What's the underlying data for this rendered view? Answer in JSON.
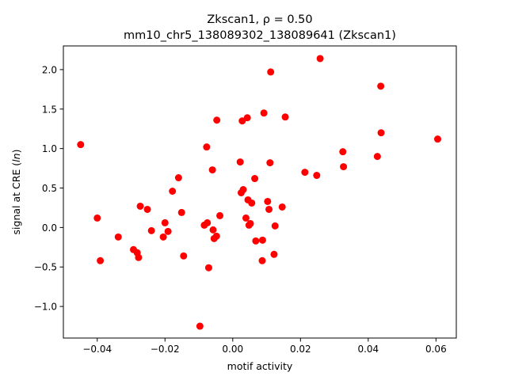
{
  "chart_data": {
    "type": "scatter",
    "title_line1": "Zkscan1, ρ = 0.50",
    "title_line2": "mm10_chr5_138089302_138089641 (Zkscan1)",
    "xlabel": "motif activity",
    "ylabel": "signal at CRE (ln)",
    "xlim": [
      -0.05,
      0.066
    ],
    "ylim": [
      -1.4,
      2.3
    ],
    "xticks": [
      -0.04,
      -0.02,
      0.0,
      0.02,
      0.04,
      0.06
    ],
    "xtick_labels": [
      "−0.04",
      "−0.02",
      "0.00",
      "0.02",
      "0.04",
      "0.06"
    ],
    "yticks": [
      -1.0,
      -0.5,
      0.0,
      0.5,
      1.0,
      1.5,
      2.0
    ],
    "ytick_labels": [
      "−1.0",
      "−0.5",
      "0.0",
      "0.5",
      "1.0",
      "1.5",
      "2.0"
    ],
    "grid": false,
    "marker_color": "#ff0000",
    "points": [
      {
        "x": -0.0449,
        "y": 1.05
      },
      {
        "x": -0.04,
        "y": 0.12
      },
      {
        "x": -0.0391,
        "y": -0.42
      },
      {
        "x": -0.0338,
        "y": -0.12
      },
      {
        "x": -0.0293,
        "y": -0.28
      },
      {
        "x": -0.0282,
        "y": -0.32
      },
      {
        "x": -0.0278,
        "y": -0.38
      },
      {
        "x": -0.0273,
        "y": 0.27
      },
      {
        "x": -0.0252,
        "y": 0.23
      },
      {
        "x": -0.024,
        "y": -0.04
      },
      {
        "x": -0.0205,
        "y": -0.12
      },
      {
        "x": -0.02,
        "y": 0.06
      },
      {
        "x": -0.0191,
        "y": -0.05
      },
      {
        "x": -0.0178,
        "y": 0.46
      },
      {
        "x": -0.016,
        "y": 0.63
      },
      {
        "x": -0.0151,
        "y": 0.19
      },
      {
        "x": -0.0145,
        "y": -0.36
      },
      {
        "x": -0.0097,
        "y": -1.25
      },
      {
        "x": -0.0084,
        "y": 0.03
      },
      {
        "x": -0.0077,
        "y": 1.02
      },
      {
        "x": -0.0075,
        "y": 0.06
      },
      {
        "x": -0.0071,
        "y": -0.51
      },
      {
        "x": -0.006,
        "y": 0.73
      },
      {
        "x": -0.0058,
        "y": -0.03
      },
      {
        "x": -0.0055,
        "y": -0.14
      },
      {
        "x": -0.0048,
        "y": -0.11
      },
      {
        "x": -0.0047,
        "y": 1.36
      },
      {
        "x": -0.0038,
        "y": 0.15
      },
      {
        "x": 0.0022,
        "y": 0.83
      },
      {
        "x": 0.0025,
        "y": 0.44
      },
      {
        "x": 0.0028,
        "y": 1.35
      },
      {
        "x": 0.0031,
        "y": 0.48
      },
      {
        "x": 0.0039,
        "y": 0.12
      },
      {
        "x": 0.0043,
        "y": 1.39
      },
      {
        "x": 0.0045,
        "y": 0.35
      },
      {
        "x": 0.0048,
        "y": 0.03
      },
      {
        "x": 0.0052,
        "y": 0.05
      },
      {
        "x": 0.0056,
        "y": 0.31
      },
      {
        "x": 0.0065,
        "y": 0.62
      },
      {
        "x": 0.0068,
        "y": -0.17
      },
      {
        "x": 0.0087,
        "y": -0.42
      },
      {
        "x": 0.0088,
        "y": -0.16
      },
      {
        "x": 0.0092,
        "y": 1.45
      },
      {
        "x": 0.0103,
        "y": 0.33
      },
      {
        "x": 0.0107,
        "y": 0.23
      },
      {
        "x": 0.011,
        "y": 0.82
      },
      {
        "x": 0.0112,
        "y": 1.97
      },
      {
        "x": 0.0122,
        "y": -0.34
      },
      {
        "x": 0.0125,
        "y": 0.02
      },
      {
        "x": 0.0146,
        "y": 0.26
      },
      {
        "x": 0.0155,
        "y": 1.4
      },
      {
        "x": 0.0213,
        "y": 0.7
      },
      {
        "x": 0.0248,
        "y": 0.66
      },
      {
        "x": 0.0258,
        "y": 2.14
      },
      {
        "x": 0.0325,
        "y": 0.96
      },
      {
        "x": 0.0327,
        "y": 0.77
      },
      {
        "x": 0.0427,
        "y": 0.9
      },
      {
        "x": 0.0437,
        "y": 1.79
      },
      {
        "x": 0.0438,
        "y": 1.2
      },
      {
        "x": 0.0605,
        "y": 1.12
      }
    ]
  }
}
